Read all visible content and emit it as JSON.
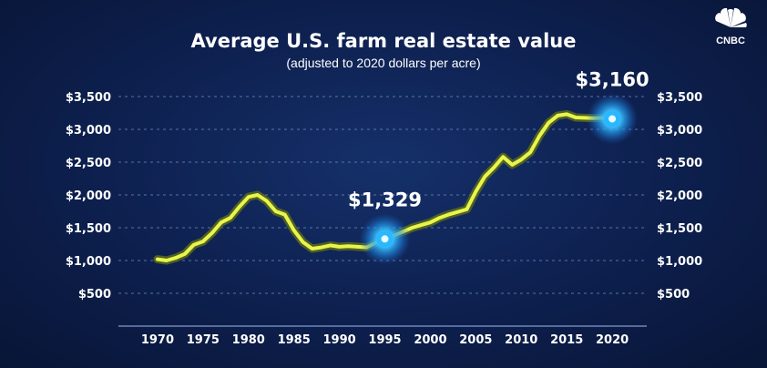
{
  "brand": {
    "name": "CNBC"
  },
  "colors": {
    "background": "#0d1f4d",
    "line": "#e9f54a",
    "line_glow": "#5a6a1e",
    "highlight": "#29b8ff",
    "grid": "#6f86b8",
    "text": "#ffffff"
  },
  "chart_data": {
    "type": "line",
    "title": "Average U.S. farm real estate value",
    "subtitle": "(adjusted to 2020 dollars per acre)",
    "xlabel": "",
    "ylabel": "",
    "xlim": [
      1965,
      2025
    ],
    "ylim": [
      0,
      3500
    ],
    "x_ticks": [
      1970,
      1975,
      1980,
      1985,
      1990,
      1995,
      2000,
      2005,
      2010,
      2015,
      2020
    ],
    "y_ticks": [
      500,
      1000,
      1500,
      2000,
      2500,
      3000,
      3500
    ],
    "y_tick_labels": [
      "$500",
      "$1,000",
      "$1,500",
      "$2,000",
      "$2,500",
      "$3,000",
      "$3,500"
    ],
    "grid": true,
    "series": [
      {
        "name": "Average farm real estate value",
        "x": [
          1970,
          1971,
          1972,
          1973,
          1974,
          1975,
          1976,
          1977,
          1978,
          1979,
          1980,
          1981,
          1982,
          1983,
          1984,
          1985,
          1986,
          1987,
          1988,
          1989,
          1990,
          1991,
          1992,
          1993,
          1994,
          1995,
          1996,
          1997,
          1998,
          1999,
          2000,
          2001,
          2002,
          2003,
          2004,
          2005,
          2006,
          2007,
          2008,
          2009,
          2010,
          2011,
          2012,
          2013,
          2014,
          2015,
          2016,
          2017,
          2018,
          2019,
          2020
        ],
        "y": [
          1020,
          1000,
          1040,
          1100,
          1240,
          1290,
          1420,
          1580,
          1650,
          1820,
          1970,
          2000,
          1910,
          1750,
          1700,
          1460,
          1280,
          1180,
          1200,
          1230,
          1210,
          1220,
          1210,
          1200,
          1270,
          1329,
          1380,
          1440,
          1500,
          1540,
          1580,
          1650,
          1700,
          1740,
          1780,
          2050,
          2280,
          2420,
          2580,
          2460,
          2540,
          2650,
          2900,
          3100,
          3210,
          3230,
          3180,
          3175,
          3170,
          3175,
          3160
        ]
      }
    ],
    "annotations": [
      {
        "x": 1995,
        "y": 1329,
        "label": "$1,329"
      },
      {
        "x": 2020,
        "y": 3160,
        "label": "$3,160"
      }
    ]
  }
}
